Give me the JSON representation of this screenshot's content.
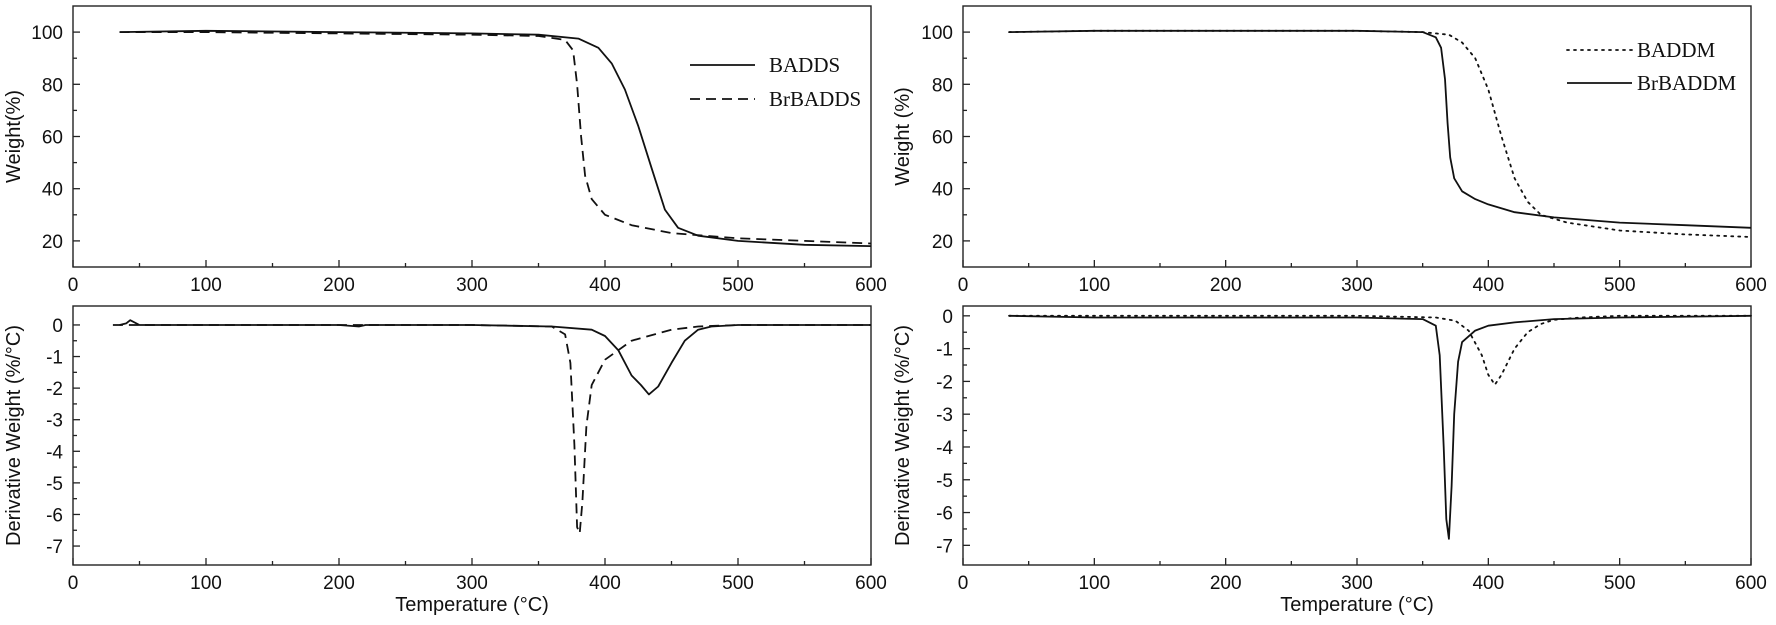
{
  "chart_data": [
    {
      "panel": "left-top",
      "type": "line",
      "ylabel": "Weight(%)",
      "xlabel": "",
      "xlim": [
        0,
        600
      ],
      "ylim": [
        10,
        110
      ],
      "xticks": [
        0,
        100,
        200,
        300,
        400,
        500,
        600
      ],
      "yticks": [
        20,
        40,
        60,
        80,
        100
      ],
      "legend_position": "top-right",
      "series": [
        {
          "name": "BADDS",
          "style": "solid",
          "x": [
            35,
            100,
            200,
            300,
            350,
            380,
            395,
            405,
            415,
            425,
            435,
            445,
            455,
            470,
            500,
            550,
            600
          ],
          "y": [
            100,
            100.5,
            100,
            99.5,
            99,
            97.5,
            94,
            88,
            78,
            64,
            48,
            32,
            25,
            22,
            20,
            18.5,
            18
          ]
        },
        {
          "name": "BrBADDS",
          "style": "dashed",
          "x": [
            35,
            100,
            200,
            300,
            350,
            370,
            376,
            379,
            382,
            385,
            390,
            400,
            420,
            450,
            500,
            550,
            600
          ],
          "y": [
            100,
            100,
            99.5,
            99,
            98.5,
            97,
            93,
            80,
            60,
            45,
            36,
            30,
            26,
            23,
            21,
            20,
            19
          ]
        }
      ]
    },
    {
      "panel": "left-bottom",
      "type": "line",
      "ylabel": "Derivative Weight (%/°C)",
      "xlabel": "Temperature (°C)",
      "xlim": [
        0,
        600
      ],
      "ylim": [
        -7.6,
        0.6
      ],
      "xticks": [
        0,
        100,
        200,
        300,
        400,
        500,
        600
      ],
      "yticks": [
        0,
        -1,
        -2,
        -3,
        -4,
        -5,
        -6,
        -7
      ],
      "series": [
        {
          "name": "BADDS",
          "style": "solid",
          "x": [
            35,
            40,
            43,
            50,
            100,
            200,
            215,
            220,
            300,
            360,
            390,
            400,
            410,
            420,
            427,
            433,
            440,
            450,
            460,
            470,
            480,
            500,
            600
          ],
          "y": [
            0,
            0.05,
            0.15,
            0,
            0,
            0,
            -0.05,
            0,
            0,
            -0.05,
            -0.15,
            -0.35,
            -0.8,
            -1.6,
            -1.9,
            -2.2,
            -1.95,
            -1.2,
            -0.5,
            -0.15,
            -0.05,
            0,
            0
          ]
        },
        {
          "name": "BrBADDS",
          "style": "dashed",
          "x": [
            30,
            100,
            200,
            300,
            360,
            370,
            374,
            377,
            379,
            381,
            383,
            386,
            390,
            400,
            420,
            450,
            470,
            500,
            600
          ],
          "y": [
            0,
            0,
            0,
            0,
            -0.05,
            -0.3,
            -1.2,
            -3.8,
            -6.4,
            -6.6,
            -5.6,
            -3.2,
            -1.9,
            -1.1,
            -0.5,
            -0.15,
            -0.05,
            0,
            0
          ]
        }
      ]
    },
    {
      "panel": "right-top",
      "type": "line",
      "ylabel": "Weight (%)",
      "xlabel": "",
      "xlim": [
        0,
        600
      ],
      "ylim": [
        10,
        110
      ],
      "xticks": [
        0,
        100,
        200,
        300,
        400,
        500,
        600
      ],
      "yticks": [
        20,
        40,
        60,
        80,
        100
      ],
      "legend_position": "top-right",
      "series": [
        {
          "name": "BADDM",
          "style": "dotted",
          "x": [
            35,
            100,
            200,
            300,
            350,
            370,
            380,
            390,
            400,
            410,
            420,
            430,
            440,
            460,
            500,
            550,
            600
          ],
          "y": [
            100,
            100.5,
            100.5,
            100.5,
            100,
            99,
            96,
            90,
            78,
            60,
            44,
            35,
            30,
            27,
            24,
            22.5,
            21.5
          ]
        },
        {
          "name": "BrBADDM",
          "style": "solid",
          "x": [
            35,
            100,
            200,
            300,
            350,
            360,
            364,
            367,
            369,
            371,
            374,
            380,
            390,
            400,
            420,
            450,
            500,
            550,
            600
          ],
          "y": [
            100,
            100.5,
            100.5,
            100.5,
            100,
            98,
            94,
            82,
            65,
            52,
            44,
            39,
            36,
            34,
            31,
            29,
            27,
            26,
            25
          ]
        }
      ]
    },
    {
      "panel": "right-bottom",
      "type": "line",
      "ylabel": "Derivative Weight (%/°C)",
      "xlabel": "Temperature (°C)",
      "xlim": [
        0,
        600
      ],
      "ylim": [
        -7.6,
        0.3
      ],
      "xticks": [
        0,
        100,
        200,
        300,
        400,
        500,
        600
      ],
      "yticks": [
        0,
        -1,
        -2,
        -3,
        -4,
        -5,
        -6,
        -7
      ],
      "series": [
        {
          "name": "BADDM",
          "style": "dotted",
          "x": [
            35,
            100,
            200,
            300,
            360,
            375,
            385,
            395,
            400,
            405,
            410,
            420,
            430,
            440,
            450,
            470,
            500,
            600
          ],
          "y": [
            0,
            0,
            0,
            0,
            -0.05,
            -0.15,
            -0.45,
            -1.2,
            -1.8,
            -2.1,
            -1.8,
            -1.0,
            -0.5,
            -0.25,
            -0.12,
            -0.05,
            0,
            0
          ]
        },
        {
          "name": "BrBADDM",
          "style": "solid",
          "x": [
            35,
            100,
            200,
            300,
            350,
            360,
            363,
            366,
            368,
            370,
            372,
            374,
            377,
            380,
            390,
            400,
            420,
            450,
            500,
            600
          ],
          "y": [
            0,
            -0.05,
            -0.05,
            -0.05,
            -0.1,
            -0.3,
            -1.2,
            -4.0,
            -6.2,
            -6.8,
            -5.2,
            -3.0,
            -1.4,
            -0.8,
            -0.45,
            -0.3,
            -0.2,
            -0.1,
            -0.05,
            0
          ]
        }
      ]
    }
  ]
}
